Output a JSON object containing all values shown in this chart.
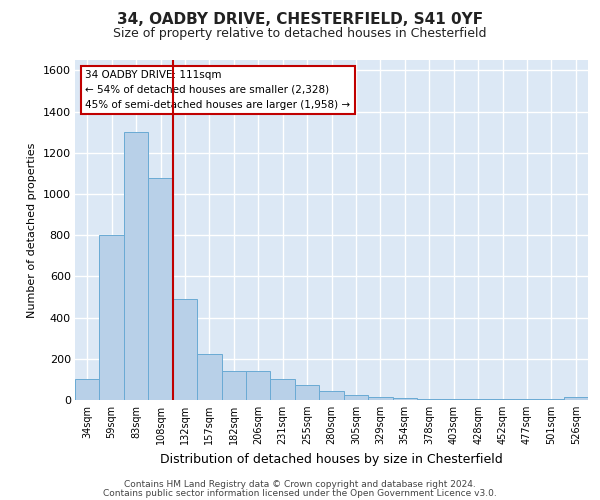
{
  "title1": "34, OADBY DRIVE, CHESTERFIELD, S41 0YF",
  "title2": "Size of property relative to detached houses in Chesterfield",
  "xlabel": "Distribution of detached houses by size in Chesterfield",
  "ylabel": "Number of detached properties",
  "footer1": "Contains HM Land Registry data © Crown copyright and database right 2024.",
  "footer2": "Contains public sector information licensed under the Open Government Licence v3.0.",
  "bar_labels": [
    "34sqm",
    "59sqm",
    "83sqm",
    "108sqm",
    "132sqm",
    "157sqm",
    "182sqm",
    "206sqm",
    "231sqm",
    "255sqm",
    "280sqm",
    "305sqm",
    "329sqm",
    "354sqm",
    "378sqm",
    "403sqm",
    "428sqm",
    "452sqm",
    "477sqm",
    "501sqm",
    "526sqm"
  ],
  "bar_values": [
    100,
    800,
    1300,
    1075,
    490,
    225,
    140,
    140,
    100,
    75,
    45,
    25,
    15,
    10,
    5,
    5,
    5,
    5,
    5,
    5,
    15
  ],
  "bar_color": "#b8d0e8",
  "bar_edge_color": "#6aaad4",
  "vline_x_index": 3.5,
  "vline_color": "#c00000",
  "annotation_text": "34 OADBY DRIVE: 111sqm\n← 54% of detached houses are smaller (2,328)\n45% of semi-detached houses are larger (1,958) →",
  "annotation_box_color": "#ffffff",
  "annotation_box_edge": "#c00000",
  "ylim": [
    0,
    1650
  ],
  "yticks": [
    0,
    200,
    400,
    600,
    800,
    1000,
    1200,
    1400,
    1600
  ],
  "fig_bg": "#ffffff",
  "plot_bg": "#dce8f5",
  "grid_color": "#ffffff",
  "title1_fontsize": 11,
  "title2_fontsize": 9,
  "ylabel_fontsize": 8,
  "xlabel_fontsize": 9,
  "footer_fontsize": 6.5,
  "tick_fontsize": 8,
  "xtick_fontsize": 7
}
